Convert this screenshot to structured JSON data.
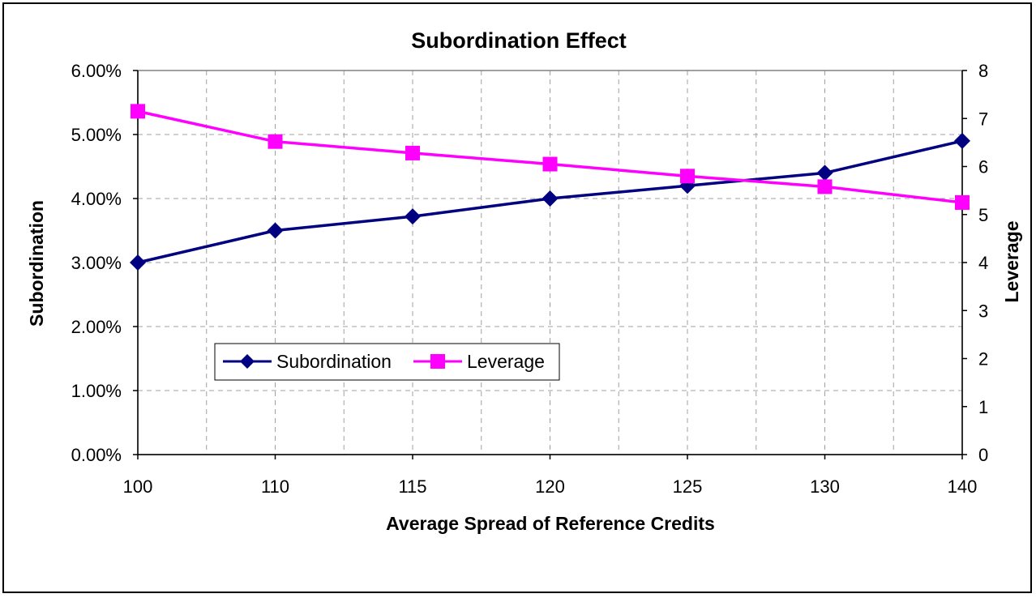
{
  "chart_data": {
    "type": "line",
    "title": "Subordination Effect",
    "xlabel": "Average Spread of Reference Credits",
    "ylabel_left": "Subordination",
    "ylabel_right": "Leverage",
    "categories": [
      "100",
      "110",
      "115",
      "120",
      "125",
      "130",
      "140"
    ],
    "y_left_ticks": [
      "0.00%",
      "1.00%",
      "2.00%",
      "3.00%",
      "4.00%",
      "5.00%",
      "6.00%"
    ],
    "y_right_ticks": [
      "0",
      "1",
      "2",
      "3",
      "4",
      "5",
      "6",
      "7",
      "8"
    ],
    "ylim_left": [
      0,
      0.06
    ],
    "ylim_right": [
      0,
      8
    ],
    "grid": true,
    "legend_position": "lower-left",
    "series": [
      {
        "name": "Subordination",
        "axis": "left",
        "color": "#000080",
        "marker": "diamond",
        "values": [
          0.03,
          0.035,
          0.0372,
          0.04,
          0.042,
          0.044,
          0.049
        ]
      },
      {
        "name": "Leverage",
        "axis": "right",
        "color": "#FF00FF",
        "marker": "square",
        "values": [
          7.15,
          6.52,
          6.28,
          6.05,
          5.8,
          5.58,
          5.25
        ]
      }
    ]
  }
}
